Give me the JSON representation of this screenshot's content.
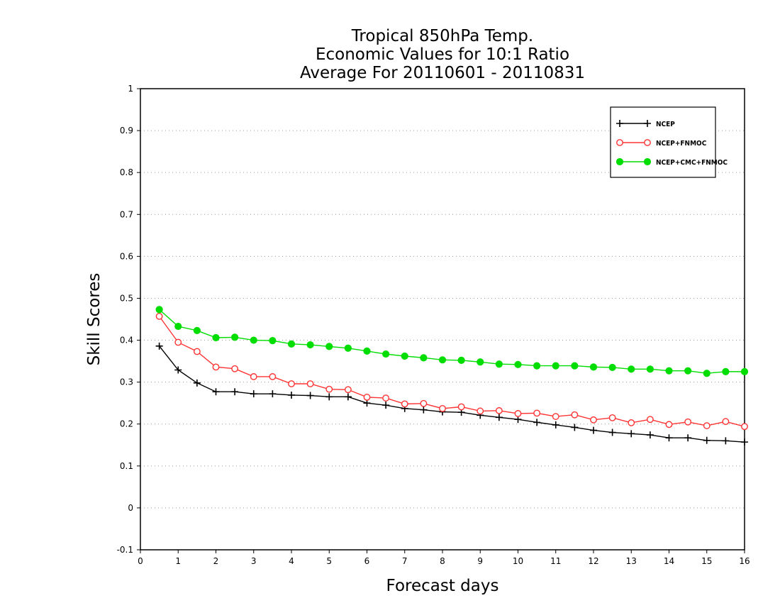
{
  "chart_data": {
    "type": "line",
    "title": [
      "Tropical 850hPa Temp.",
      "Economic Values for 10:1 Ratio",
      "Average For 20110601 - 20110831"
    ],
    "xlabel": "Forecast days",
    "ylabel": "Skill Scores",
    "xlim": [
      0,
      16
    ],
    "ylim": [
      -0.1,
      1
    ],
    "xticks": [
      0,
      1,
      2,
      3,
      4,
      5,
      6,
      7,
      8,
      9,
      10,
      11,
      12,
      13,
      14,
      15,
      16
    ],
    "yticks": [
      -0.1,
      0,
      0.1,
      0.2,
      0.3,
      0.4,
      0.5,
      0.6,
      0.7,
      0.8,
      0.9,
      1
    ],
    "ytick_labels": [
      "-0.1",
      "0",
      "0.1",
      "0.2",
      "0.3",
      "0.4",
      "0.5",
      "0.6",
      "0.7",
      "0.8",
      "0.9",
      "1"
    ],
    "grid": "horizontal dotted",
    "legend_position": "top-right",
    "x": [
      0.5,
      1,
      1.5,
      2,
      2.5,
      3,
      3.5,
      4,
      4.5,
      5,
      5.5,
      6,
      6.5,
      7,
      7.5,
      8,
      8.5,
      9,
      9.5,
      10,
      10.5,
      11,
      11.5,
      12,
      12.5,
      13,
      13.5,
      14,
      14.5,
      15,
      15.5,
      16
    ],
    "series": [
      {
        "name": "NCEP",
        "color": "#000000",
        "marker": "plus",
        "values": [
          0.386,
          0.329,
          0.298,
          0.277,
          0.277,
          0.272,
          0.272,
          0.269,
          0.268,
          0.265,
          0.265,
          0.25,
          0.245,
          0.237,
          0.234,
          0.229,
          0.228,
          0.221,
          0.216,
          0.211,
          0.204,
          0.198,
          0.192,
          0.185,
          0.18,
          0.177,
          0.174,
          0.167,
          0.167,
          0.161,
          0.16,
          0.157
        ]
      },
      {
        "name": "NCEP+FNMOC",
        "color": "#ff3333",
        "marker": "open-circle",
        "values": [
          0.457,
          0.395,
          0.373,
          0.336,
          0.332,
          0.313,
          0.313,
          0.296,
          0.296,
          0.283,
          0.282,
          0.264,
          0.262,
          0.248,
          0.249,
          0.237,
          0.241,
          0.231,
          0.232,
          0.225,
          0.226,
          0.218,
          0.222,
          0.21,
          0.215,
          0.203,
          0.211,
          0.199,
          0.205,
          0.196,
          0.206,
          0.194
        ]
      },
      {
        "name": "NCEP+CMC+FNMOC",
        "color": "#00dd00",
        "marker": "filled-circle",
        "values": [
          0.473,
          0.433,
          0.423,
          0.406,
          0.407,
          0.4,
          0.399,
          0.391,
          0.389,
          0.385,
          0.381,
          0.374,
          0.367,
          0.362,
          0.358,
          0.353,
          0.352,
          0.348,
          0.343,
          0.342,
          0.339,
          0.339,
          0.339,
          0.336,
          0.335,
          0.331,
          0.331,
          0.327,
          0.327,
          0.321,
          0.325,
          0.325
        ]
      }
    ]
  }
}
